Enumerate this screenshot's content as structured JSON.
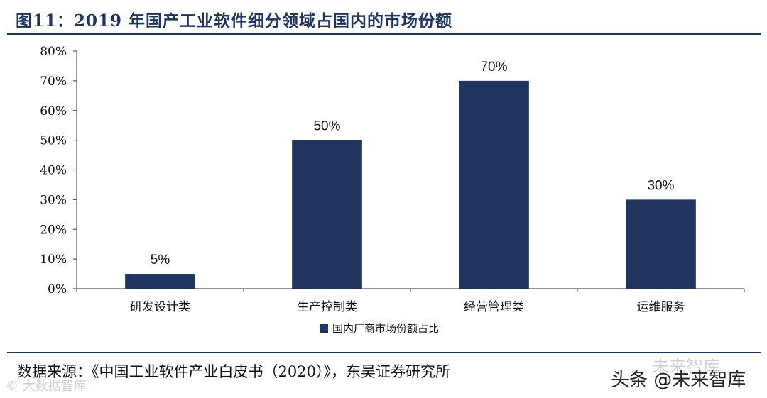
{
  "header": {
    "title": "图11：2019 年国产工业软件细分领域占国内的市场份额"
  },
  "chart_data": {
    "type": "bar",
    "title": "",
    "xlabel": "",
    "ylabel": "",
    "categories": [
      "研发设计类",
      "生产控制类",
      "经营管理类",
      "运维服务"
    ],
    "series": [
      {
        "name": "国内厂商市场份额占比",
        "values": [
          5,
          50,
          70,
          30
        ],
        "color": "#1f3560"
      }
    ],
    "data_labels": [
      "5%",
      "50%",
      "70%",
      "30%"
    ],
    "ylim": [
      0,
      80
    ],
    "yticks": [
      0,
      10,
      20,
      30,
      40,
      50,
      60,
      70,
      80
    ],
    "ytick_labels": [
      "0%",
      "10%",
      "20%",
      "30%",
      "40%",
      "50%",
      "60%",
      "70%",
      "80%"
    ],
    "grid": false,
    "legend_position": "bottom"
  },
  "footer": {
    "source": "数据来源：《中国工业软件产业白皮书（2020）》，东吴证券研究所",
    "watermark_left": "© 大数据智库",
    "watermark_logo": "未来智库",
    "watermark_right": "头条 @未来智库"
  }
}
